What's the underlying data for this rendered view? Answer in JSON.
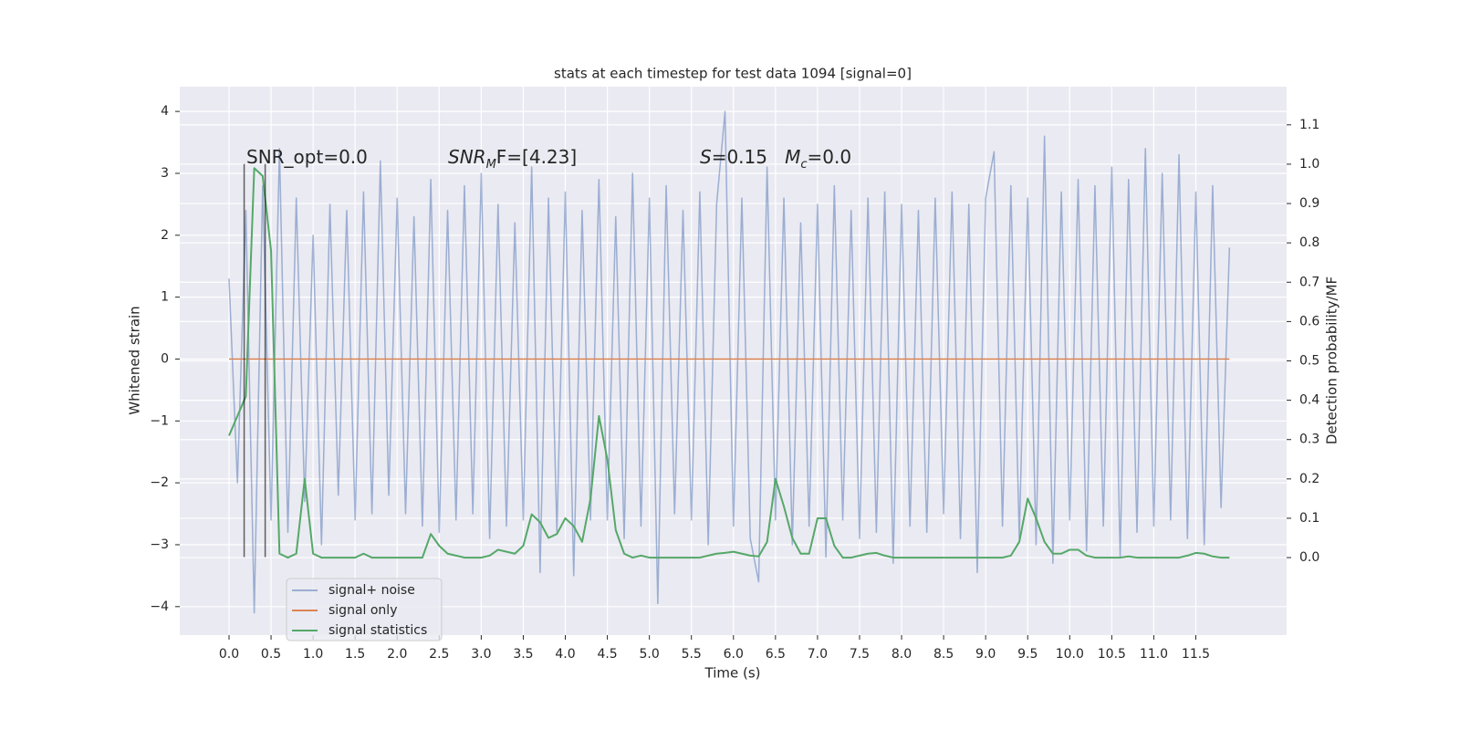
{
  "chart_data": {
    "type": "line",
    "title": "stats at each timestep for test data 1094 [signal=0]",
    "xlabel": "Time (s)",
    "ylabel": "Whitened strain",
    "y2label": "Detection probability/MF",
    "annotations": [
      [
        "SNR_opt=0.0"
      ],
      [
        "SNR",
        "M",
        "F=[4.23]"
      ],
      [
        "S",
        "=0.15   ",
        "M",
        "c",
        "=0.0"
      ]
    ],
    "x": [
      0.0,
      0.1,
      0.2,
      0.3,
      0.4,
      0.5,
      0.6,
      0.7,
      0.8,
      0.9,
      1.0,
      1.1,
      1.2,
      1.3,
      1.4,
      1.5,
      1.6,
      1.7,
      1.8,
      1.9,
      2.0,
      2.1,
      2.2,
      2.3,
      2.4,
      2.5,
      2.6,
      2.7,
      2.8,
      2.9,
      3.0,
      3.1,
      3.2,
      3.3,
      3.4,
      3.5,
      3.6,
      3.7,
      3.8,
      3.9,
      4.0,
      4.1,
      4.2,
      4.3,
      4.4,
      4.5,
      4.6,
      4.7,
      4.8,
      4.9,
      5.0,
      5.1,
      5.2,
      5.3,
      5.4,
      5.5,
      5.6,
      5.7,
      5.8,
      5.9,
      6.0,
      6.1,
      6.2,
      6.3,
      6.4,
      6.5,
      6.6,
      6.7,
      6.8,
      6.9,
      7.0,
      7.1,
      7.2,
      7.3,
      7.4,
      7.5,
      7.6,
      7.7,
      7.8,
      7.9,
      8.0,
      8.1,
      8.2,
      8.3,
      8.4,
      8.5,
      8.6,
      8.7,
      8.8,
      8.9,
      9.0,
      9.1,
      9.2,
      9.3,
      9.4,
      9.5,
      9.6,
      9.7,
      9.8,
      9.9,
      10.0,
      10.1,
      10.2,
      10.3,
      10.4,
      10.5,
      10.6,
      10.7,
      10.8,
      10.9,
      11.0,
      11.1,
      11.2,
      11.3,
      11.4,
      11.5,
      11.6,
      11.7,
      11.8,
      11.9
    ],
    "series": [
      {
        "name": "signal+ noise",
        "color": "#4c72b0",
        "opacity": 0.5,
        "values": [
          1.3,
          -2.0,
          2.4,
          -4.1,
          2.8,
          -2.6,
          3.4,
          -2.8,
          2.6,
          -2.3,
          2.0,
          -3.0,
          2.5,
          -2.2,
          2.4,
          -2.6,
          2.7,
          -2.5,
          3.2,
          -2.2,
          2.6,
          -2.5,
          2.3,
          -2.7,
          2.9,
          -2.8,
          2.4,
          -2.6,
          2.8,
          -2.5,
          3.0,
          -2.9,
          2.5,
          -2.7,
          2.2,
          -2.6,
          3.1,
          -3.45,
          2.6,
          -2.8,
          2.7,
          -3.5,
          2.4,
          -2.6,
          2.9,
          -2.6,
          2.3,
          -2.9,
          3.0,
          -2.7,
          2.6,
          -3.95,
          2.8,
          -2.5,
          2.4,
          -2.6,
          2.7,
          -3.0,
          2.5,
          4.0,
          -2.7,
          2.6,
          -2.9,
          -3.6,
          3.1,
          -2.6,
          2.6,
          -3.0,
          2.2,
          -2.7,
          2.5,
          -3.2,
          2.8,
          -2.6,
          2.4,
          -2.9,
          2.6,
          -2.8,
          2.7,
          -3.3,
          2.5,
          -2.7,
          2.4,
          -2.8,
          2.6,
          -2.5,
          2.7,
          -2.9,
          2.5,
          -3.45,
          2.6,
          3.35,
          -2.7,
          2.8,
          -2.9,
          2.6,
          -3.0,
          3.6,
          -3.3,
          2.7,
          -2.6,
          2.9,
          -3.1,
          2.8,
          -2.7,
          3.1,
          -3.2,
          2.9,
          -2.8,
          3.4,
          -2.7,
          3.0,
          -2.6,
          3.3,
          -2.9,
          2.7,
          -3.0,
          2.8,
          -2.4,
          1.8
        ]
      },
      {
        "name": "signal only",
        "color": "#dd8452",
        "opacity": 1,
        "values": [
          0,
          0,
          0,
          0,
          0,
          0,
          0,
          0,
          0,
          0,
          0,
          0,
          0,
          0,
          0,
          0,
          0,
          0,
          0,
          0,
          0,
          0,
          0,
          0,
          0,
          0,
          0,
          0,
          0,
          0,
          0,
          0,
          0,
          0,
          0,
          0,
          0,
          0,
          0,
          0,
          0,
          0,
          0,
          0,
          0,
          0,
          0,
          0,
          0,
          0,
          0,
          0,
          0,
          0,
          0,
          0,
          0,
          0,
          0,
          0,
          0,
          0,
          0,
          0,
          0,
          0,
          0,
          0,
          0,
          0,
          0,
          0,
          0,
          0,
          0,
          0,
          0,
          0,
          0,
          0,
          0,
          0,
          0,
          0,
          0,
          0,
          0,
          0,
          0,
          0,
          0,
          0,
          0,
          0,
          0,
          0,
          0,
          0,
          0,
          0,
          0,
          0,
          0,
          0,
          0,
          0,
          0,
          0,
          0,
          0,
          0,
          0,
          0,
          0,
          0,
          0,
          0,
          0,
          0,
          0
        ]
      },
      {
        "name": "signal statistics",
        "color": "#55a868",
        "opacity": 1,
        "axis": "y2",
        "values": [
          0.31,
          0.36,
          0.41,
          0.99,
          0.97,
          0.78,
          0.01,
          0.0,
          0.01,
          0.2,
          0.01,
          0.0,
          0.0,
          0.0,
          0.0,
          0.0,
          0.01,
          0.0,
          0.0,
          0.0,
          0.0,
          0.0,
          0.0,
          0.0,
          0.06,
          0.03,
          0.01,
          0.005,
          0.0,
          0.0,
          0.0,
          0.005,
          0.02,
          0.015,
          0.01,
          0.03,
          0.11,
          0.09,
          0.05,
          0.06,
          0.1,
          0.08,
          0.04,
          0.15,
          0.36,
          0.25,
          0.07,
          0.01,
          0.0,
          0.005,
          0.0,
          0.0,
          0.0,
          0.0,
          0.0,
          0.0,
          0.0,
          0.005,
          0.01,
          0.012,
          0.015,
          0.01,
          0.005,
          0.003,
          0.04,
          0.2,
          0.13,
          0.05,
          0.01,
          0.01,
          0.1,
          0.1,
          0.03,
          0.0,
          0.0,
          0.005,
          0.01,
          0.012,
          0.005,
          0.0,
          0.0,
          0.0,
          0.0,
          0.0,
          0.0,
          0.0,
          0.0,
          0.0,
          0.0,
          0.0,
          0.0,
          0.0,
          0.0,
          0.005,
          0.04,
          0.15,
          0.1,
          0.04,
          0.01,
          0.01,
          0.02,
          0.02,
          0.005,
          0.0,
          0.0,
          0.0,
          0.0,
          0.003,
          0.0,
          0.0,
          0.0,
          0.0,
          0.0,
          0.0,
          0.005,
          0.012,
          0.01,
          0.003,
          0.0,
          0.0
        ]
      }
    ],
    "vlines": [
      0.18,
      0.43
    ],
    "vline_range": [
      -3.2,
      3.15
    ],
    "xlim": [
      -0.586,
      12.58
    ],
    "ylim": [
      -4.46,
      4.4
    ],
    "y2lim": [
      -0.197,
      1.197
    ],
    "xticks": [
      {
        "value": 0,
        "label": "0.0"
      },
      0.5,
      {
        "value": 1,
        "label": "1.0"
      },
      1.5,
      {
        "value": 2,
        "label": "2.0"
      },
      2.5,
      {
        "value": 3,
        "label": "3.0"
      },
      3.5,
      {
        "value": 4,
        "label": "4.0"
      },
      4.5,
      {
        "value": 5,
        "label": "5.0"
      },
      5.5,
      {
        "value": 6,
        "label": "6.0"
      },
      6.5,
      {
        "value": 7,
        "label": "7.0"
      },
      7.5,
      {
        "value": 8,
        "label": "8.0"
      },
      8.5,
      {
        "value": 9,
        "label": "9.0"
      },
      9.5,
      {
        "value": 10,
        "label": "10.0"
      },
      10.5,
      {
        "value": 11,
        "label": "11.0"
      },
      11.5
    ],
    "yticks": [
      {
        "value": -4,
        "label": "−4"
      },
      {
        "value": -3,
        "label": "−3"
      },
      {
        "value": -2,
        "label": "−2"
      },
      {
        "value": -1,
        "label": "−1"
      },
      0,
      1,
      2,
      3,
      4
    ],
    "y2ticks": [
      {
        "value": 0,
        "label": "0.0"
      },
      0.1,
      0.2,
      0.3,
      0.4,
      0.5,
      0.6,
      0.7,
      0.8,
      0.9,
      {
        "value": 1,
        "label": "1.0"
      },
      1.1
    ],
    "grid": true,
    "legend": "lower left"
  }
}
